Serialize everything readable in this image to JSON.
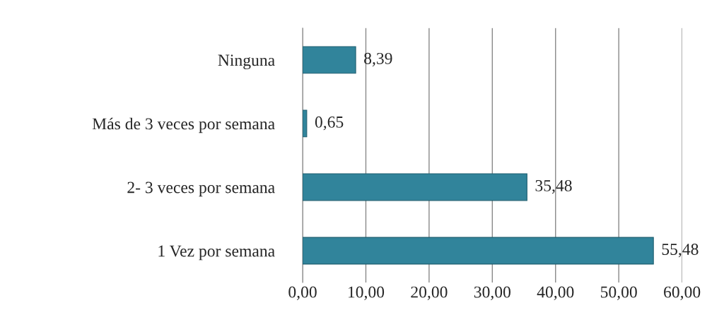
{
  "chart_data": {
    "type": "bar",
    "orientation": "horizontal",
    "categories": [
      "Ninguna",
      "Más de 3 veces por semana",
      "2- 3 veces por semana",
      "1 Vez por semana"
    ],
    "values": [
      8.39,
      0.65,
      35.48,
      55.48
    ],
    "value_labels": [
      "8,39",
      "0,65",
      "35,48",
      "55,48"
    ],
    "color": "#31849b",
    "xlim": [
      0,
      60
    ],
    "xticks": [
      {
        "value": 0,
        "label": "0,00"
      },
      {
        "value": 10,
        "label": "10,00"
      },
      {
        "value": 20,
        "label": "20,00"
      },
      {
        "value": 30,
        "label": "30,00"
      },
      {
        "value": 40,
        "label": "40,00"
      },
      {
        "value": 50,
        "label": "50,00"
      },
      {
        "value": 60,
        "label": "60,00"
      }
    ],
    "grid": "x"
  }
}
